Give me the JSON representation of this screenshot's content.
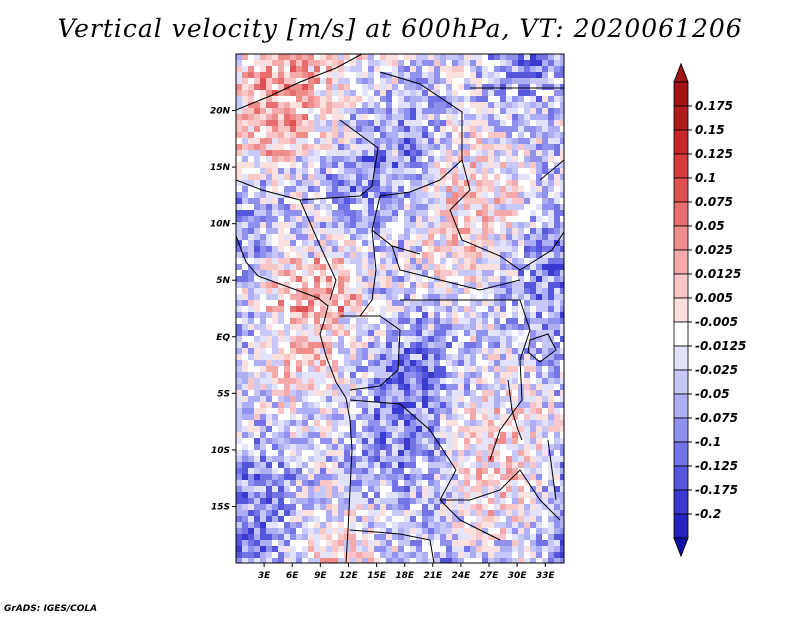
{
  "title": "Vertical velocity [m/s] at 600hPa, VT: 2020061206",
  "footer": "GrADS: IGES/COLA",
  "map": {
    "lon_range": [
      0,
      35
    ],
    "lat_range": [
      -20,
      25
    ],
    "lat_labels": [
      {
        "lat": 20,
        "text": "20N"
      },
      {
        "lat": 15,
        "text": "15N"
      },
      {
        "lat": 10,
        "text": "10N"
      },
      {
        "lat": 5,
        "text": "5N"
      },
      {
        "lat": 0,
        "text": "EQ"
      },
      {
        "lat": -5,
        "text": "5S"
      },
      {
        "lat": -10,
        "text": "10S"
      },
      {
        "lat": -15,
        "text": "15S"
      }
    ],
    "lon_labels": [
      {
        "lon": 3,
        "text": "3E"
      },
      {
        "lon": 6,
        "text": "6E"
      },
      {
        "lon": 9,
        "text": "9E"
      },
      {
        "lon": 12,
        "text": "12E"
      },
      {
        "lon": 15,
        "text": "15E"
      },
      {
        "lon": 18,
        "text": "18E"
      },
      {
        "lon": 21,
        "text": "21E"
      },
      {
        "lon": 24,
        "text": "24E"
      },
      {
        "lon": 27,
        "text": "27E"
      },
      {
        "lon": 30,
        "text": "30E"
      },
      {
        "lon": 33,
        "text": "33E"
      }
    ]
  },
  "colorbar": {
    "levels": [
      {
        "label": "0.175",
        "color": "#b01c1c"
      },
      {
        "label": "0.15",
        "color": "#c62828"
      },
      {
        "label": "0.125",
        "color": "#d63a3a"
      },
      {
        "label": "0.1",
        "color": "#e05050"
      },
      {
        "label": "0.075",
        "color": "#e66e6e"
      },
      {
        "label": "0.05",
        "color": "#ef8c8c"
      },
      {
        "label": "0.025",
        "color": "#f4aaaa"
      },
      {
        "label": "0.0125",
        "color": "#f8c6c6"
      },
      {
        "label": "0.005",
        "color": "#fbe0e0"
      },
      {
        "label": "-0.005",
        "color": "#ffffff"
      },
      {
        "label": "-0.0125",
        "color": "#e2e2fb"
      },
      {
        "label": "-0.025",
        "color": "#c8c8f8"
      },
      {
        "label": "-0.05",
        "color": "#aeaef4"
      },
      {
        "label": "-0.075",
        "color": "#9090ee"
      },
      {
        "label": "-0.1",
        "color": "#7373e6"
      },
      {
        "label": "-0.125",
        "color": "#5656dc"
      },
      {
        "label": "-0.175",
        "color": "#3a3ad0"
      },
      {
        "label": "-0.2",
        "color": "#2424be"
      }
    ],
    "top_color": "#a01414",
    "bottom_color": "#1010a8"
  }
}
